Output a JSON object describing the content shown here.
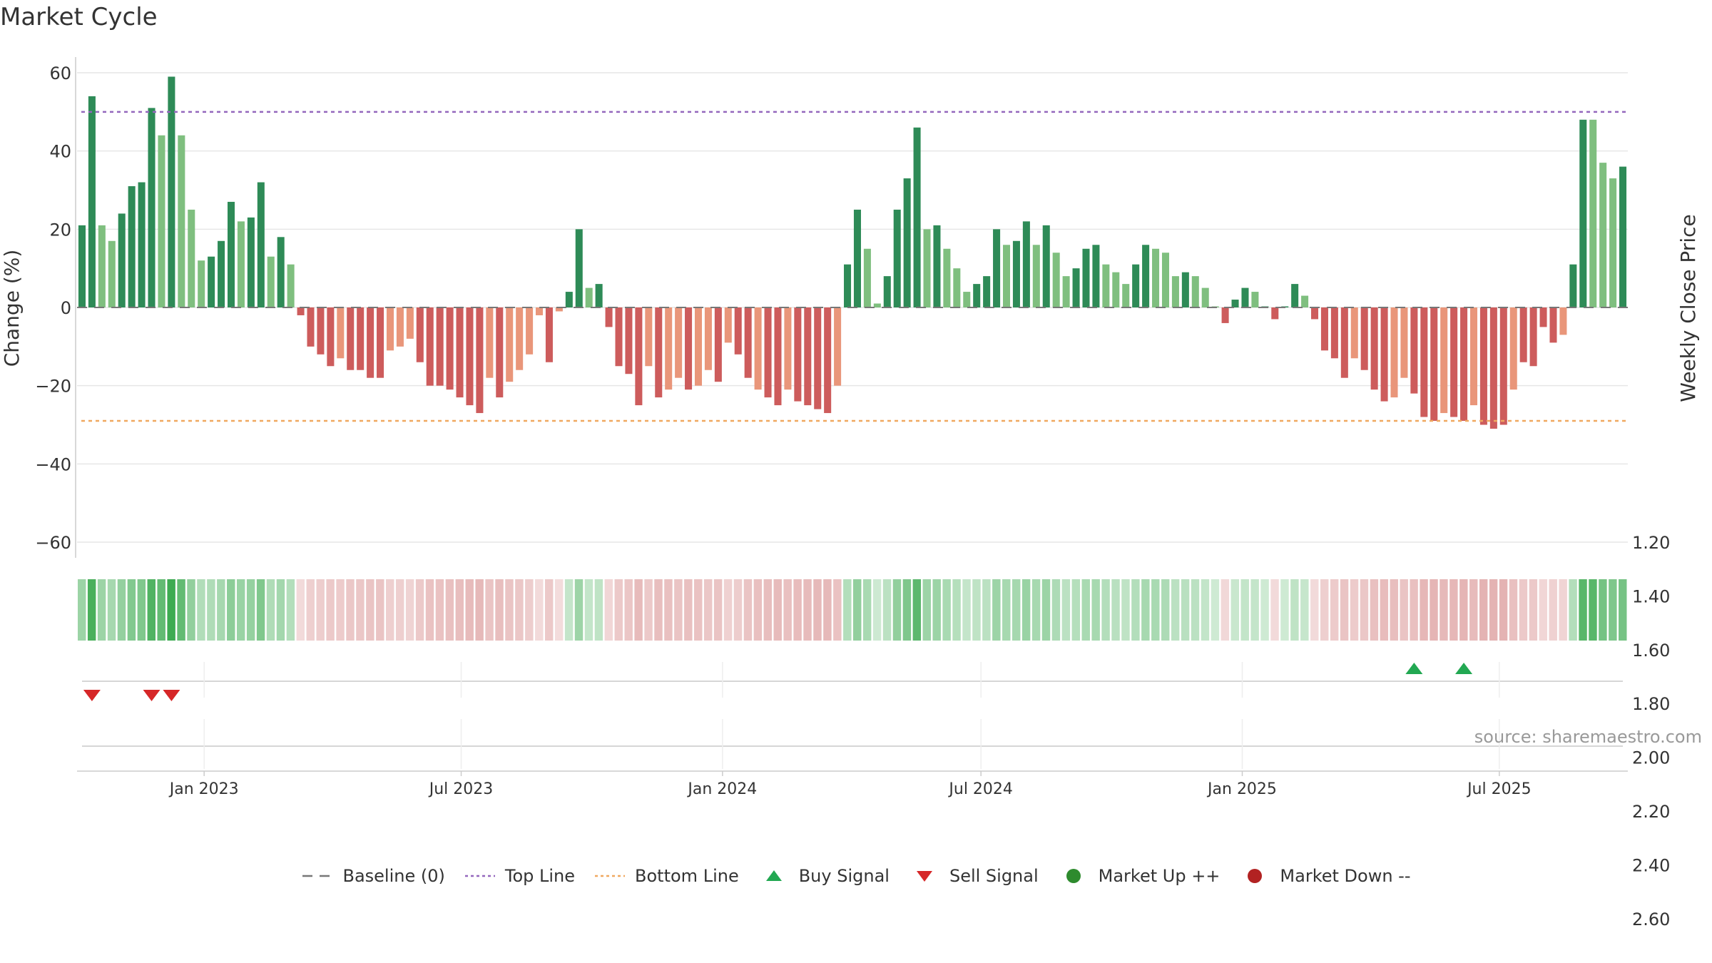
{
  "title": "Market Cycle",
  "source": "source: sharemaestro.com",
  "legend": [
    {
      "label": "Baseline (0)",
      "icon": "dashed-gray-line",
      "color": "#777777"
    },
    {
      "label": "Top Line",
      "icon": "dotted-purple-line",
      "color": "#9467bd"
    },
    {
      "label": "Bottom Line",
      "icon": "dotted-orange-line",
      "color": "#f0a860"
    },
    {
      "label": "Buy Signal",
      "icon": "green-up-triangle",
      "color": "#22a852"
    },
    {
      "label": "Sell Signal",
      "icon": "red-down-triangle",
      "color": "#d62728"
    },
    {
      "label": "Market Up ++",
      "icon": "green-dot",
      "color": "#2e8b2e"
    },
    {
      "label": "Market Down --",
      "icon": "red-dot",
      "color": "#b22222"
    }
  ],
  "chart_data": {
    "type": "bar",
    "title": "Market Cycle",
    "ylabel_left": "Change (%)",
    "ylabel_right": "Weekly Close Price",
    "ylim_left": [
      -60,
      60
    ],
    "yticks_left": [
      60,
      40,
      20,
      0,
      -20,
      -40,
      -60
    ],
    "ytick_labels_left": [
      "60",
      "40",
      "20",
      "0",
      "−20",
      "−40",
      "−60"
    ],
    "ylim_right": [
      1.2,
      2.8
    ],
    "yticks_right": [
      "2.80",
      "2.60",
      "2.40",
      "2.20",
      "2.00",
      "1.80",
      "1.60",
      "1.40",
      "1.20"
    ],
    "x_start_date": "2022-10-07",
    "x_tick_labels": [
      "Jan 2023",
      "Jul 2023",
      "Jan 2024",
      "Jul 2024",
      "Jan 2025",
      "Jul 2025"
    ],
    "x_tick_dates": [
      "2023-01-01",
      "2023-07-01",
      "2024-01-01",
      "2024-07-01",
      "2025-01-01",
      "2025-07-01"
    ],
    "top_line": 50,
    "bottom_line": -29,
    "baseline": 0,
    "grid": true,
    "legend_position": "bottom",
    "colors": {
      "up_dark": "#2e8b57",
      "up_light": "#7fbf7f",
      "down_dark": "#cd5c5c",
      "down_light": "#e9967a",
      "top_line": "#9467bd",
      "bottom_line": "#f0a860",
      "buy": "#22a852",
      "sell": "#d62728"
    },
    "values": [
      21,
      54,
      21,
      17,
      24,
      31,
      32,
      51,
      44,
      59,
      44,
      25,
      12,
      13,
      17,
      27,
      22,
      23,
      32,
      13,
      18,
      11,
      -2,
      -10,
      -12,
      -15,
      -13,
      -16,
      -16,
      -18,
      -18,
      -11,
      -10,
      -8,
      -14,
      -20,
      -20,
      -21,
      -23,
      -25,
      -27,
      -18,
      -23,
      -19,
      -16,
      -12,
      -2,
      -14,
      -1,
      4,
      20,
      5,
      6,
      -5,
      -15,
      -17,
      -25,
      -15,
      -23,
      -21,
      -18,
      -21,
      -20,
      -16,
      -19,
      -9,
      -12,
      -18,
      -21,
      -23,
      -25,
      -21,
      -24,
      -25,
      -26,
      -27,
      -20,
      11,
      25,
      15,
      1,
      8,
      25,
      33,
      46,
      20,
      21,
      15,
      10,
      4,
      6,
      8,
      20,
      16,
      17,
      22,
      16,
      21,
      14,
      8,
      10,
      15,
      16,
      11,
      9,
      6,
      11,
      16,
      15,
      14,
      8,
      9,
      8,
      5,
      0,
      -4,
      2,
      5,
      4,
      0,
      -3,
      0,
      6,
      3,
      -3,
      -11,
      -13,
      -18,
      -13,
      -16,
      -21,
      -24,
      -23,
      -18,
      -22,
      -28,
      -29,
      -27,
      -28,
      -29,
      -25,
      -30,
      -31,
      -30,
      -21,
      -14,
      -15,
      -5,
      -9,
      -7,
      11,
      48,
      48,
      37,
      33,
      36
    ],
    "shades": [
      0,
      0,
      1,
      1,
      0,
      0,
      0,
      0,
      1,
      0,
      1,
      1,
      1,
      0,
      0,
      0,
      1,
      0,
      0,
      1,
      0,
      1,
      0,
      0,
      0,
      0,
      1,
      0,
      0,
      0,
      0,
      1,
      1,
      1,
      0,
      0,
      0,
      0,
      0,
      0,
      0,
      1,
      0,
      1,
      1,
      1,
      1,
      0,
      1,
      0,
      0,
      1,
      0,
      0,
      0,
      0,
      0,
      1,
      0,
      1,
      1,
      0,
      1,
      1,
      0,
      1,
      0,
      0,
      1,
      0,
      0,
      1,
      0,
      0,
      0,
      0,
      1,
      0,
      0,
      1,
      1,
      0,
      0,
      0,
      0,
      1,
      0,
      1,
      1,
      1,
      0,
      0,
      0,
      1,
      0,
      0,
      1,
      0,
      1,
      1,
      0,
      0,
      0,
      1,
      1,
      1,
      0,
      0,
      1,
      1,
      1,
      0,
      1,
      1,
      1,
      0,
      0,
      0,
      1,
      0,
      0,
      0,
      0,
      1,
      0,
      0,
      0,
      0,
      1,
      0,
      0,
      0,
      1,
      1,
      0,
      0,
      0,
      1,
      0,
      0,
      1,
      0,
      0,
      0,
      1,
      0,
      0,
      0,
      0,
      1,
      0,
      0,
      1,
      1,
      1,
      0
    ],
    "buy_signals": [
      "2025-05-02",
      "2025-06-06"
    ],
    "sell_signals": [
      "2022-10-14",
      "2022-11-25",
      "2022-12-09"
    ]
  }
}
